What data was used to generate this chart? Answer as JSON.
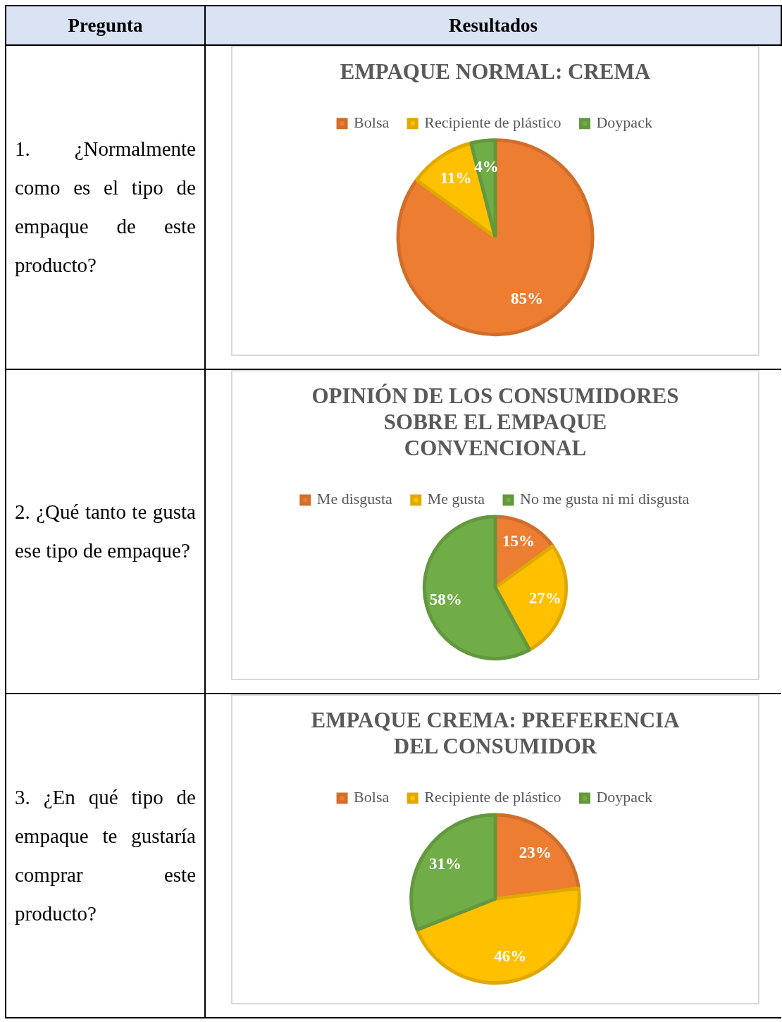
{
  "chart_data": [
    {
      "type": "other",
      "annotations": [
        "Pregunta",
        "Resultados"
      ]
    },
    {
      "type": "pie",
      "title": "EMPAQUE NORMAL: CREMA",
      "categories": [
        "Bolsa",
        "Recipiente de plástico",
        "Doypack"
      ],
      "values": [
        85,
        11,
        4
      ],
      "colors": [
        "#ed7d31",
        "#ffc000",
        "#70ad47"
      ],
      "legend": "top",
      "value_labels": [
        "85%",
        "11%",
        "4%"
      ],
      "annotations": [
        "1.   ¿Normalmente como es el tipo de empaque de este producto?"
      ]
    },
    {
      "type": "pie",
      "title": "OPINIÓN DE LOS CONSUMIDORES SOBRE EL EMPAQUE CONVENCIONAL",
      "categories": [
        "Me disgusta",
        "Me gusta",
        "No me gusta ni mi disgusta"
      ],
      "values": [
        15,
        27,
        58
      ],
      "colors": [
        "#ed7d31",
        "#ffc000",
        "#70ad47"
      ],
      "legend": "top",
      "value_labels": [
        "15%",
        "27%",
        "58%"
      ],
      "annotations": [
        "2.  ¿Qué tanto te gusta ese tipo de empaque?"
      ]
    },
    {
      "type": "pie",
      "title": "EMPAQUE CREMA: PREFERENCIA DEL CONSUMIDOR",
      "categories": [
        "Bolsa",
        "Recipiente de plástico",
        "Doypack"
      ],
      "values": [
        23,
        46,
        31
      ],
      "colors": [
        "#ed7d31",
        "#ffc000",
        "#70ad47"
      ],
      "legend": "top",
      "value_labels": [
        "23%",
        "46%",
        "31%"
      ],
      "annotations": [
        "3.  ¿En qué tipo de empaque te gustaría comprar este producto?"
      ]
    }
  ]
}
